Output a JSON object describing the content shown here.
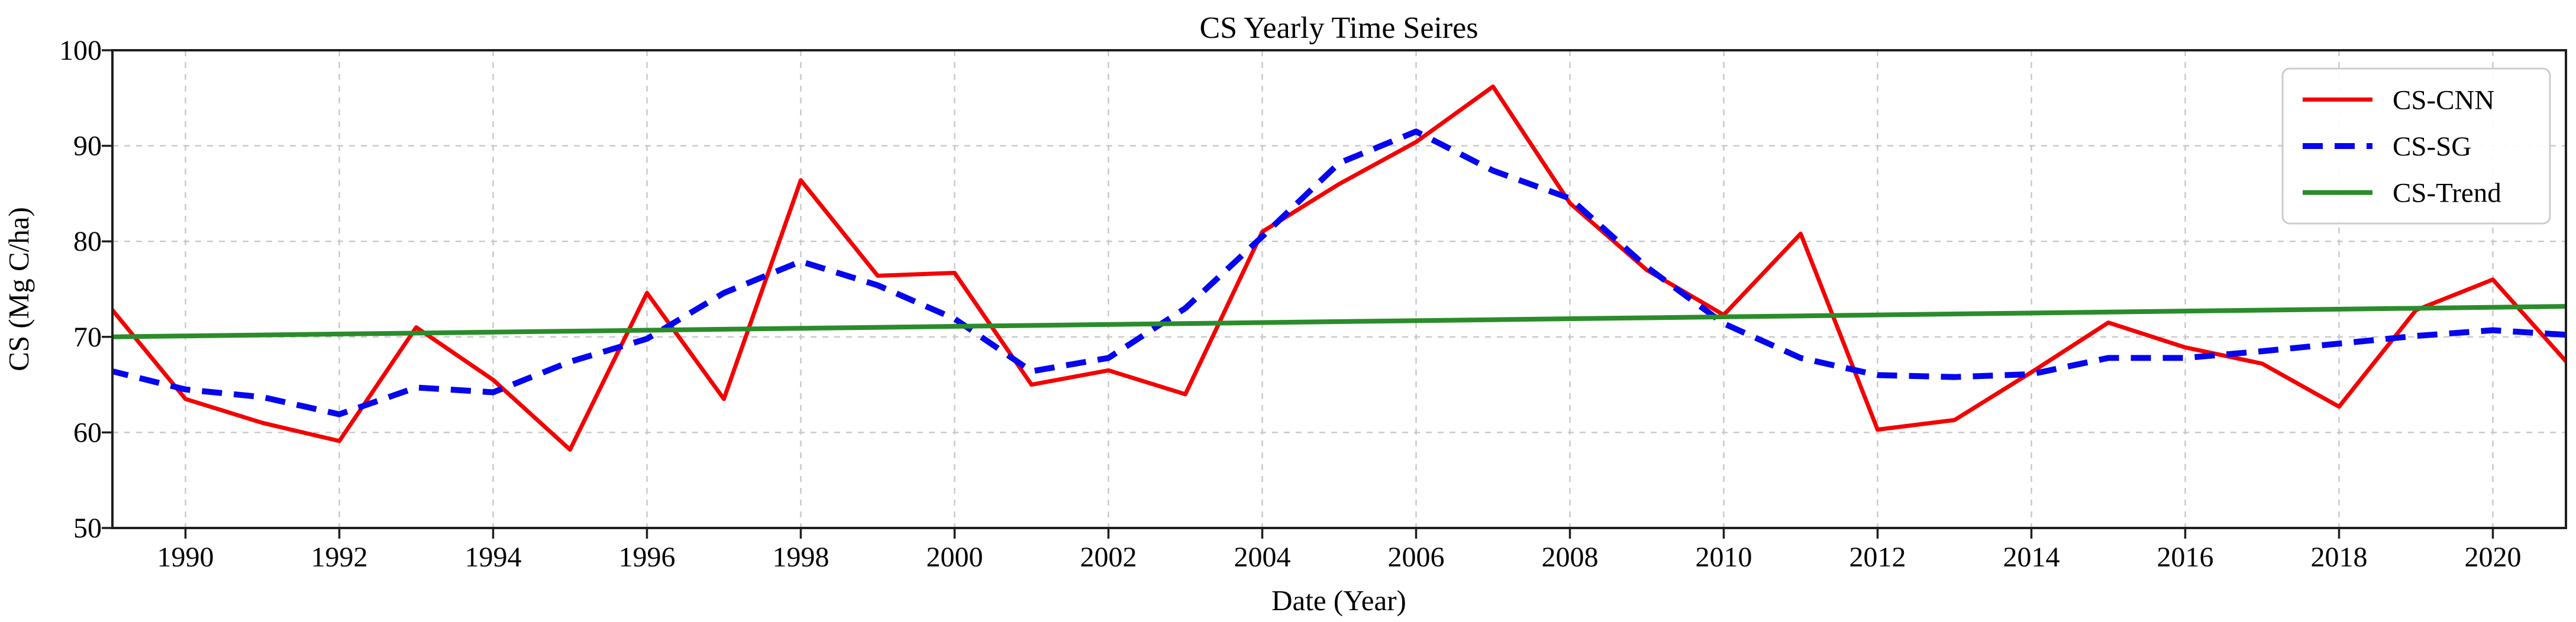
{
  "figure": {
    "title": "CS Yearly Time Seires",
    "background": "#ffffff"
  },
  "chart_data": {
    "type": "line",
    "title": "CS Yearly Time Seires",
    "xlabel": "Date  (Year)",
    "ylabel": "CS  (Mg C/ha)",
    "x": [
      1989,
      1990,
      1991,
      1992,
      1993,
      1994,
      1995,
      1996,
      1997,
      1998,
      1999,
      2000,
      2001,
      2002,
      2003,
      2004,
      2005,
      2006,
      2007,
      2008,
      2009,
      2010,
      2011,
      2012,
      2013,
      2014,
      2015,
      2016,
      2017,
      2018,
      2019,
      2020,
      2021
    ],
    "series": [
      {
        "name": "CS-CNN",
        "color": "#f40000",
        "style": "solid",
        "line_width": 7,
        "values": [
          73.3,
          63.5,
          61.0,
          59.1,
          71.0,
          65.5,
          58.2,
          74.6,
          63.5,
          86.4,
          76.4,
          76.7,
          65.0,
          66.5,
          64.0,
          81.0,
          86.0,
          90.4,
          96.2,
          84.0,
          77.0,
          72.3,
          80.8,
          60.3,
          61.3,
          66.3,
          71.5,
          68.9,
          67.2,
          62.7,
          72.8,
          76.0,
          67.0
        ]
      },
      {
        "name": "CS-SG",
        "color": "#0505ef",
        "style": "dashed",
        "line_width": 10,
        "values": [
          66.5,
          64.5,
          63.7,
          61.9,
          64.7,
          64.2,
          67.4,
          69.8,
          74.6,
          77.9,
          75.4,
          71.9,
          66.4,
          67.8,
          73.0,
          80.5,
          88.2,
          91.5,
          87.4,
          84.5,
          77.3,
          71.4,
          67.8,
          66.0,
          65.8,
          66.1,
          67.8,
          67.8,
          68.5,
          69.3,
          70.1,
          70.7,
          70.2
        ]
      },
      {
        "name": "CS-Trend",
        "color": "#2a8c2a",
        "style": "solid",
        "line_width": 8,
        "trend_endpoints": {
          "x_start": 1989,
          "y_start": 70.0,
          "x_end": 2021,
          "y_end": 73.2
        }
      }
    ],
    "xlim": [
      1989.05,
      2020.95
    ],
    "ylim": [
      50,
      100
    ],
    "xticks": [
      1990,
      1992,
      1994,
      1996,
      1998,
      2000,
      2002,
      2004,
      2006,
      2008,
      2010,
      2012,
      2014,
      2016,
      2018,
      2020
    ],
    "yticks": [
      50,
      60,
      70,
      80,
      90,
      100
    ],
    "grid": true,
    "legend_position": "upper right",
    "legend_labels": [
      "CS-CNN",
      "CS-SG",
      "CS-Trend"
    ]
  },
  "style": {
    "grid_color": "#c7c7c7",
    "spine_color": "#1f1f1f",
    "tick_color": "#1f1f1f",
    "legend_border_color": "#cccccc",
    "legend_background": "#ffffff"
  }
}
